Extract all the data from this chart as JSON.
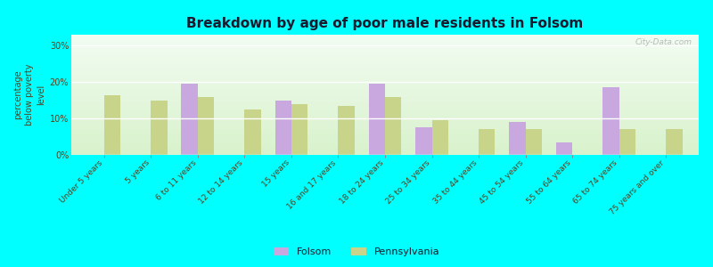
{
  "title": "Breakdown by age of poor male residents in Folsom",
  "ylabel": "percentage\nbelow poverty\nlevel",
  "categories": [
    "Under 5 years",
    "5 years",
    "6 to 11 years",
    "12 to 14 years",
    "15 years",
    "16 and 17 years",
    "18 to 24 years",
    "25 to 34 years",
    "35 to 44 years",
    "45 to 54 years",
    "55 to 64 years",
    "65 to 74 years",
    "75 years and over"
  ],
  "folsom": [
    null,
    null,
    19.5,
    null,
    15.0,
    null,
    19.5,
    7.5,
    null,
    9.0,
    3.5,
    18.5,
    null
  ],
  "pennsylvania": [
    16.5,
    15.0,
    16.0,
    12.5,
    14.0,
    13.5,
    16.0,
    9.5,
    7.0,
    7.0,
    null,
    7.0,
    7.0
  ],
  "folsom_color": "#c9a8e0",
  "pennsylvania_color": "#c8d48a",
  "outer_bg_color": "#00ffff",
  "title_color": "#1a1a2e",
  "yticks": [
    0,
    10,
    20,
    30
  ],
  "ylim": [
    0,
    33
  ],
  "bar_width": 0.35
}
